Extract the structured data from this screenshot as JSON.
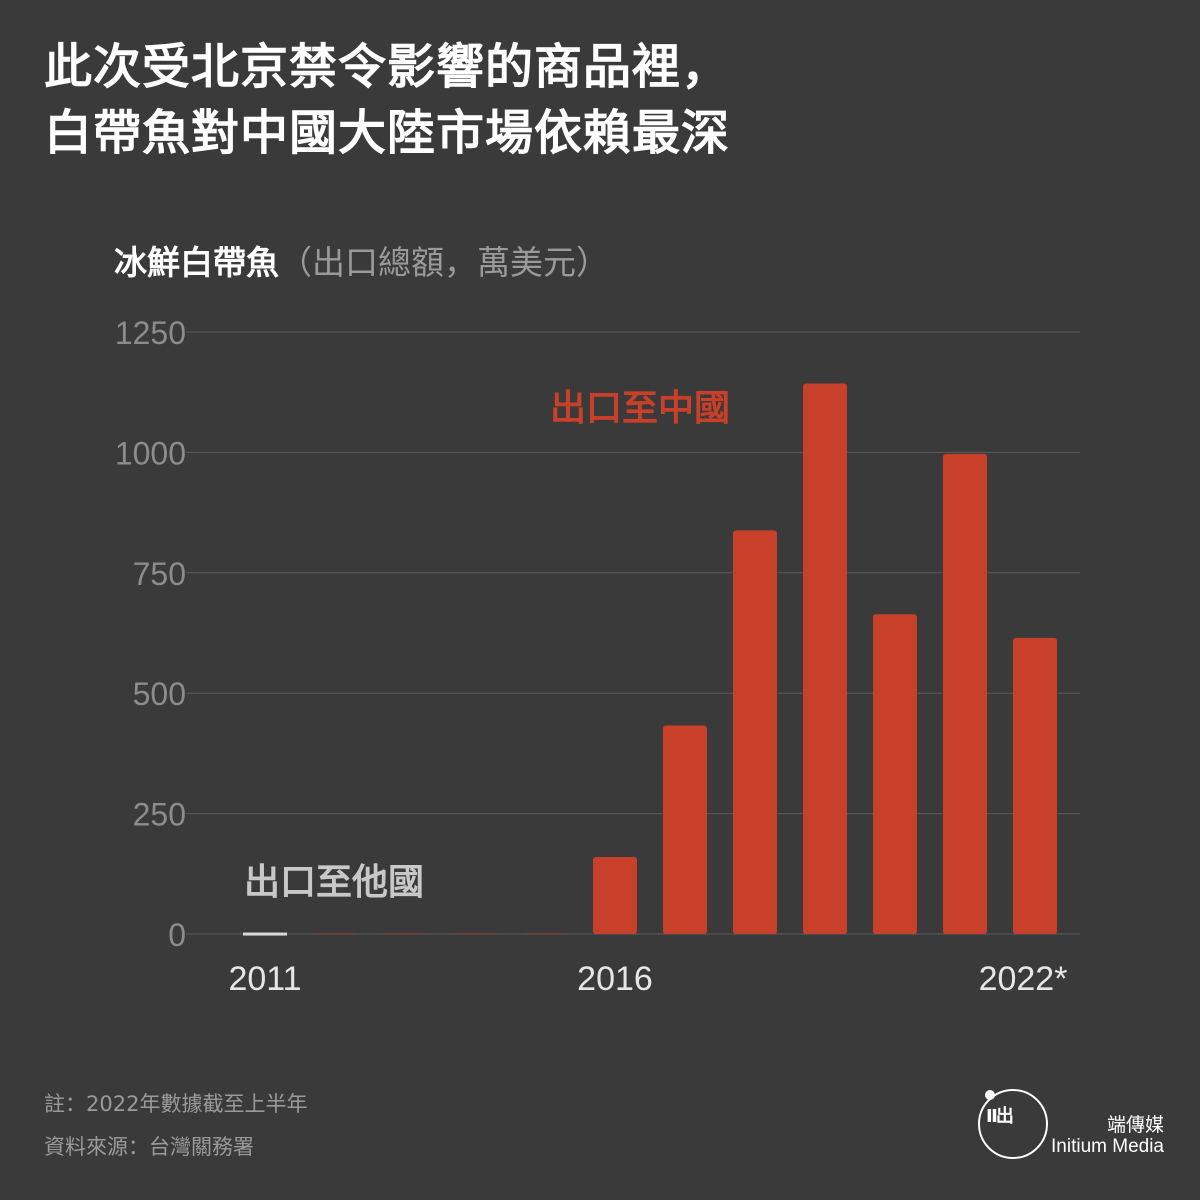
{
  "title": {
    "line1": "此次受北京禁令影響的商品裡，",
    "line2": "白帶魚對中國大陸市場依賴最深"
  },
  "subtitle": {
    "main": "冰鮮白帶魚",
    "unit": "（出口總額，萬美元）"
  },
  "chart_data": {
    "type": "bar",
    "categories": [
      "2011",
      "2012",
      "2013",
      "2014",
      "2015",
      "2016",
      "2017",
      "2018",
      "2019",
      "2020",
      "2021",
      "2022*"
    ],
    "x_tick_labels": [
      "2011",
      "2016",
      "2022*"
    ],
    "series": [
      {
        "name": "出口至中國",
        "color": "#c9402a",
        "values": [
          0,
          1,
          1,
          1,
          1,
          160,
          433,
          838,
          1143,
          664,
          997,
          615
        ]
      },
      {
        "name": "出口至他國",
        "color": "#d9d9d9",
        "values": [
          3,
          0,
          0,
          0,
          0,
          0,
          0,
          0,
          0,
          0,
          0,
          0
        ]
      }
    ],
    "yticks": [
      0,
      250,
      500,
      750,
      1000,
      1250
    ],
    "ylim": [
      0,
      1250
    ],
    "grid": true,
    "colors": {
      "background": "#3a3a3a",
      "grid": "#5a5a5a",
      "tick": "#8c8c8c",
      "x_tick": "#e6e6e6",
      "other_label": "#c8c8c8"
    }
  },
  "notes": {
    "note1": "註：2022年數據截至上半年",
    "note2": "資料來源：台灣關務署"
  },
  "brand": {
    "logo_icon": "initium-logo-icon",
    "logo_glyph": "Ⅱ出",
    "name_cn": "端傳媒",
    "name_en": "Initium Media"
  }
}
